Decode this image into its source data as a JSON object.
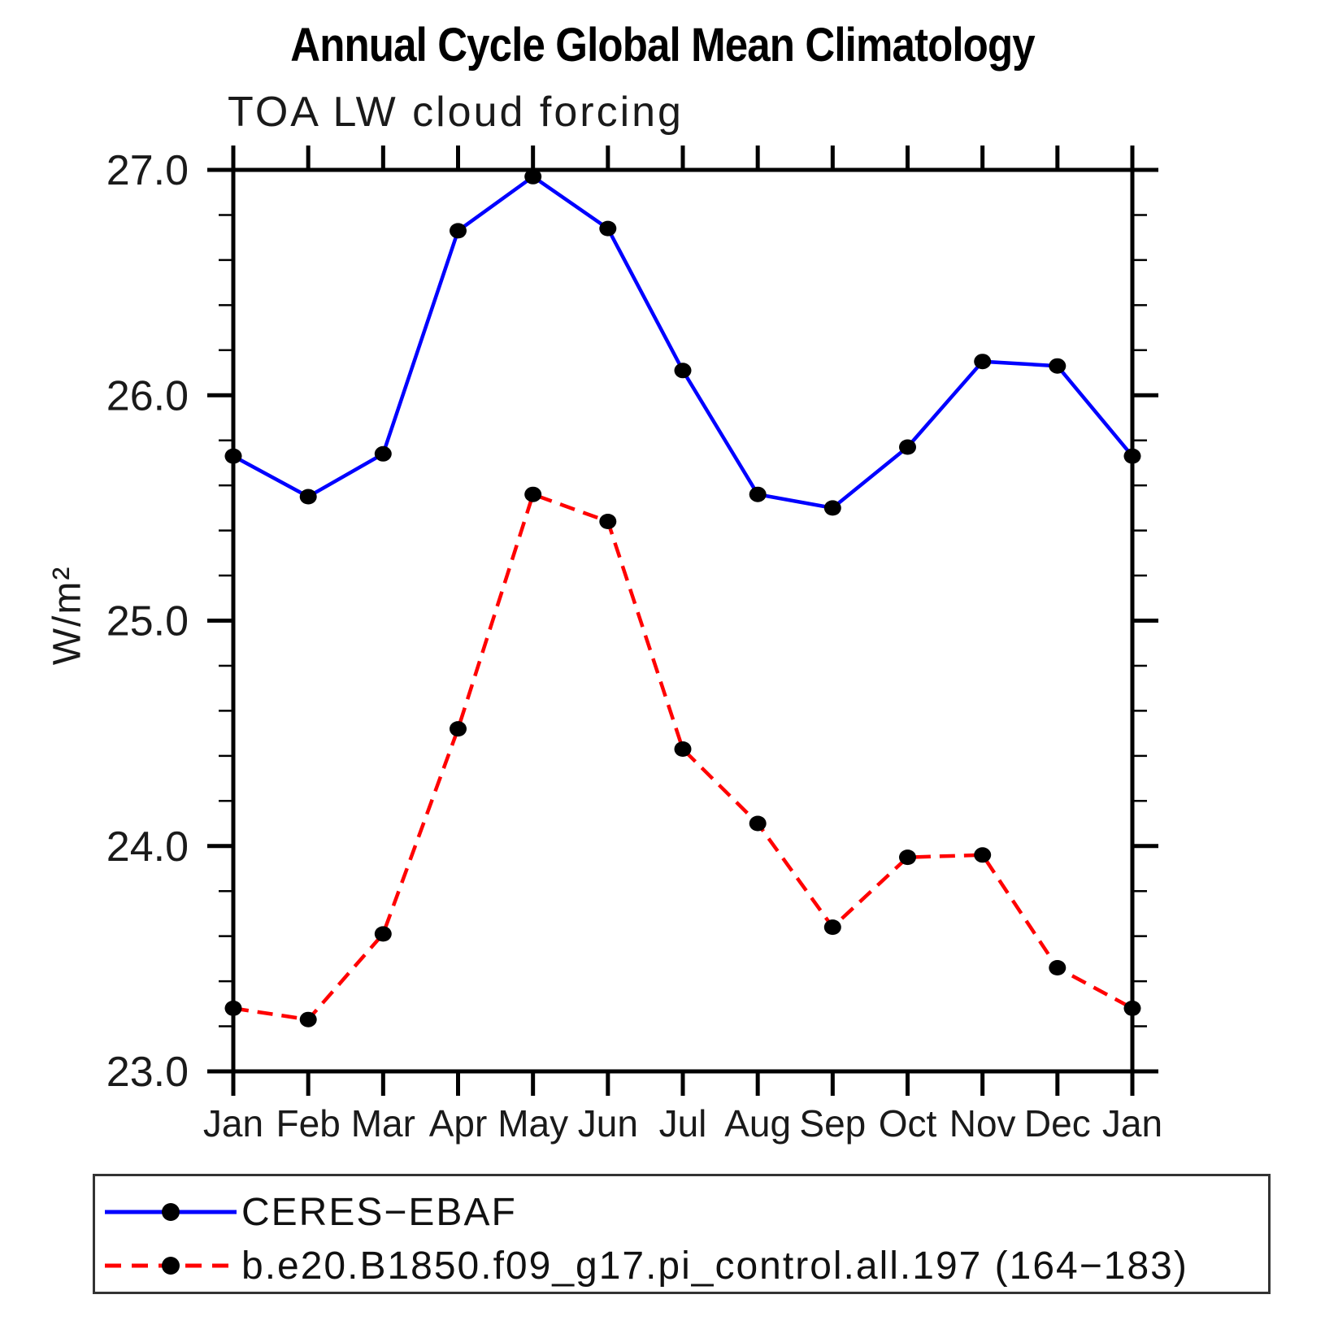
{
  "title": "Annual Cycle Global Mean Climatology",
  "subtitle": "TOA LW cloud forcing",
  "chart_data": {
    "type": "line",
    "title": "Annual Cycle Global Mean Climatology",
    "subtitle": "TOA LW cloud forcing",
    "ylabel": "W/m²",
    "xlabel": "",
    "x": [
      "Jan",
      "Feb",
      "Mar",
      "Apr",
      "May",
      "Jun",
      "Jul",
      "Aug",
      "Sep",
      "Oct",
      "Nov",
      "Dec",
      "Jan"
    ],
    "ylim": [
      23.0,
      27.0
    ],
    "yticks": [
      "23.0",
      "24.0",
      "25.0",
      "26.0",
      "27.0"
    ],
    "ytick_values": [
      23.0,
      24.0,
      25.0,
      26.0,
      27.0
    ],
    "minor_tick_interval": 0.2,
    "grid": "off",
    "legend_position": "bottom",
    "axis_color": "#000000",
    "marker": "filled-circle",
    "marker_color": "#000000",
    "series": [
      {
        "name": "CERES−EBAF",
        "color": "#0000ff",
        "style": "solid",
        "values": [
          25.73,
          25.55,
          25.74,
          26.73,
          26.97,
          26.74,
          26.11,
          25.56,
          25.5,
          25.77,
          26.15,
          26.13,
          25.73
        ]
      },
      {
        "name": "b.e20.B1850.f09_g17.pi_control.all.197 (164−183)",
        "color": "#ff0000",
        "style": "dashed",
        "values": [
          23.28,
          23.23,
          23.61,
          24.52,
          25.56,
          25.44,
          24.43,
          24.1,
          23.64,
          23.95,
          23.96,
          23.46,
          23.28
        ]
      }
    ]
  }
}
